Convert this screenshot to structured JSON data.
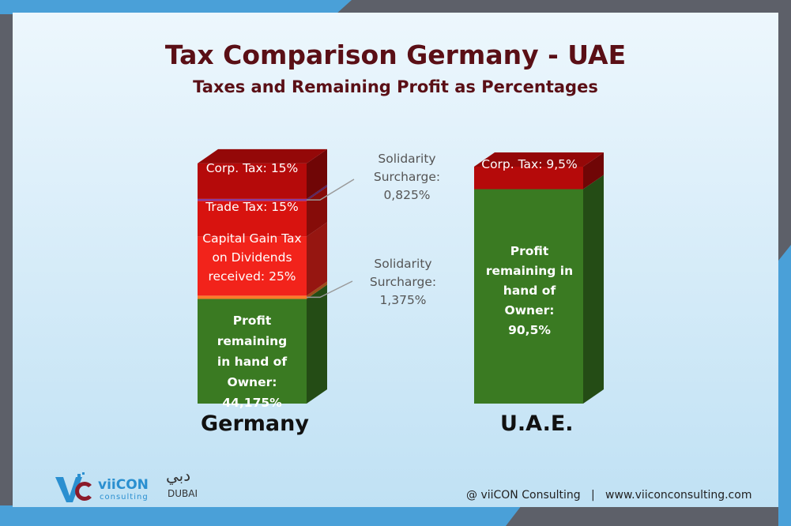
{
  "title": "Tax Comparison Germany - UAE",
  "subtitle": "Taxes and Remaining Profit as Percentages",
  "chart_data": {
    "type": "bar",
    "stacked": true,
    "categories": [
      "Germany",
      "U.A.E."
    ],
    "series": [
      {
        "name": "Profit remaining in hand of Owner",
        "values": [
          44.175,
          90.5
        ],
        "color": "#3a7a22"
      },
      {
        "name": "Solidarity Surcharge",
        "values": [
          1.375,
          0
        ],
        "color": "#ff7a2a"
      },
      {
        "name": "Capital Gain Tax on Dividends received",
        "values": [
          25,
          0
        ],
        "color": "#f2231b"
      },
      {
        "name": "Trade Tax",
        "values": [
          15,
          0
        ],
        "color": "#d8130f"
      },
      {
        "name": "Solidarity Surcharge",
        "values": [
          0.825,
          0
        ],
        "color": "#8a3aa0"
      },
      {
        "name": "Corp. Tax",
        "values": [
          15,
          9.5
        ],
        "color": "#b50a0a"
      }
    ],
    "labels": {
      "germany_corp": "Corp. Tax: 15%",
      "germany_trade": "Trade Tax: 15%",
      "germany_capital": [
        "Capital Gain Tax",
        "on Dividends",
        "received: 25%"
      ],
      "germany_profit": [
        "Profit remaining",
        "in hand of",
        "Owner:",
        "44,175%"
      ],
      "uae_corp": "Corp. Tax: 9,5%",
      "uae_profit": [
        "Profit",
        "remaining in",
        "hand of",
        "Owner:",
        "90,5%"
      ]
    },
    "annotations": {
      "solidarity_top": [
        "Solidarity",
        "Surcharge:",
        "0,825%"
      ],
      "solidarity_bottom": [
        "Solidarity",
        "Surcharge:",
        "1,375%"
      ]
    }
  },
  "countries": {
    "germany": "Germany",
    "uae": "U.A.E."
  },
  "logo": {
    "brand": "viiCON",
    "tagline": "consulting",
    "city_arabic": "دبي",
    "city": "DUBAI"
  },
  "footer": {
    "credit": "@ viiCON Consulting   |   www.viiconconsulting.com"
  },
  "colors": {
    "title": "#5a0f16",
    "frame_blue": "#4aa0d8",
    "frame_grey": "#5a5d66",
    "background_top": "#e9f5fc",
    "background_bottom": "#c2e2f4"
  }
}
